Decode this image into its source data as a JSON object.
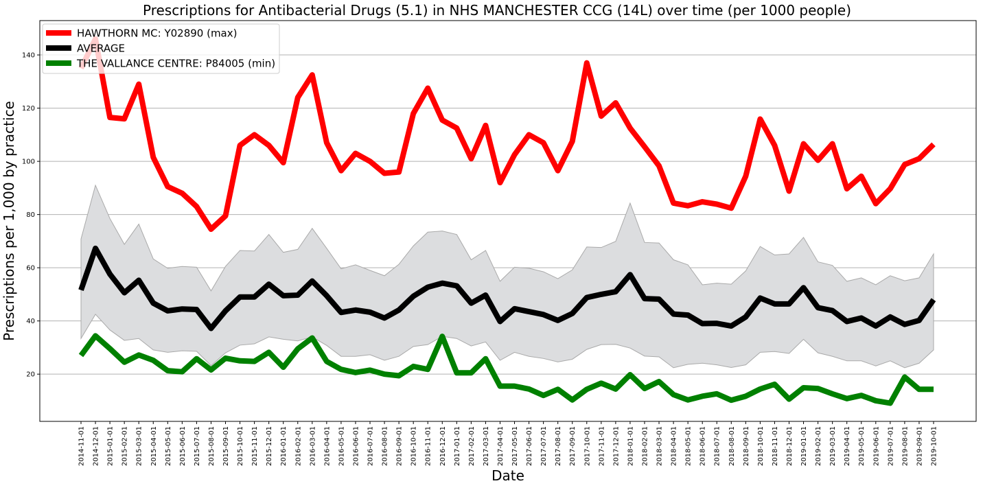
{
  "chart_data": {
    "type": "line",
    "title": "Prescriptions for Antibacterial Drugs (5.1) in NHS MANCHESTER CCG (14L) over time (per 1000 people)",
    "xlabel": "Date",
    "ylabel": "Prescriptions per 1,000 by practice",
    "ylim": [
      1.5,
      154
    ],
    "yticks": [
      20,
      40,
      60,
      80,
      100,
      120,
      140
    ],
    "grid": "y",
    "legend_position": "upper left",
    "x": [
      "2014-11-01",
      "2014-12-01",
      "2015-01-01",
      "2015-02-01",
      "2015-03-01",
      "2015-04-01",
      "2015-05-01",
      "2015-06-01",
      "2015-07-01",
      "2015-08-01",
      "2015-09-01",
      "2015-10-01",
      "2015-11-01",
      "2015-12-01",
      "2016-01-01",
      "2016-02-01",
      "2016-03-01",
      "2016-04-01",
      "2016-05-01",
      "2016-06-01",
      "2016-07-01",
      "2016-08-01",
      "2016-09-01",
      "2016-10-01",
      "2016-11-01",
      "2016-12-01",
      "2017-01-01",
      "2017-02-01",
      "2017-03-01",
      "2017-04-01",
      "2017-05-01",
      "2017-06-01",
      "2017-07-01",
      "2017-08-01",
      "2017-09-01",
      "2017-10-01",
      "2017-11-01",
      "2017-12-01",
      "2018-01-01",
      "2018-02-01",
      "2018-03-01",
      "2018-04-01",
      "2018-05-01",
      "2018-06-01",
      "2018-07-01",
      "2018-08-01",
      "2018-09-01",
      "2018-10-01",
      "2018-11-01",
      "2018-12-01",
      "2019-01-01",
      "2019-02-01",
      "2019-03-01",
      "2019-04-01",
      "2019-05-01",
      "2019-06-01",
      "2019-07-01",
      "2019-08-01",
      "2019-09-01",
      "2019-10-01"
    ],
    "series": [
      {
        "name": "HAWTHORN MC: Y02890 (max)",
        "color": "#ff0000",
        "values": [
          135,
          146,
          116.5,
          116,
          129,
          101.5,
          90.5,
          88,
          83,
          74.5,
          79.5,
          106,
          110,
          106,
          99.5,
          124,
          132.5,
          107,
          96.5,
          103,
          100,
          95.5,
          96,
          118,
          127.5,
          115.5,
          112.5,
          101,
          113.5,
          92,
          102.5,
          110,
          107,
          96.5,
          107.5,
          137,
          117,
          122,
          112.5,
          105.5,
          98.3,
          84.3,
          83.3,
          84.8,
          83.9,
          82.4,
          94.4,
          115.9,
          106,
          88.8,
          106.6,
          100.4,
          106.6,
          89.7,
          94.4,
          84.1,
          89.7,
          98.8,
          101,
          106.4
        ]
      },
      {
        "name": "AVERAGE",
        "color": "#000000",
        "values": [
          51.6,
          67.3,
          57.6,
          50.6,
          55.3,
          46.7,
          43.8,
          44.5,
          44.3,
          37.2,
          43.8,
          49,
          49,
          53.8,
          49.5,
          49.7,
          55,
          49.5,
          43.2,
          44.1,
          43.3,
          41.1,
          44.1,
          49.3,
          52.7,
          54.2,
          53.2,
          46.7,
          49.7,
          39.8,
          44.6,
          43.5,
          42.4,
          40.2,
          42.8,
          48.8,
          50,
          51,
          57.4,
          48.4,
          48.2,
          42.6,
          42.2,
          39,
          39.1,
          38.1,
          41.5,
          48.6,
          46.4,
          46.4,
          52.5,
          45,
          43.9,
          39.8,
          41.1,
          38.1,
          41.5,
          38.7,
          40.2,
          48
        ]
      },
      {
        "name": "THE VALLANCE CENTRE: P84005 (min)",
        "color": "#008000",
        "values": [
          27,
          34.4,
          29.6,
          24.5,
          27.2,
          25.2,
          21.3,
          20.9,
          25.8,
          21.6,
          26,
          25,
          24.8,
          28.2,
          22.6,
          29.5,
          33.6,
          24.8,
          21.8,
          20.6,
          21.5,
          20,
          19.4,
          22.9,
          21.8,
          34.2,
          20.5,
          20.5,
          25.8,
          15.5,
          15.5,
          14.4,
          12,
          14.3,
          10.3,
          14.3,
          16.6,
          14.4,
          19.8,
          14.6,
          17.2,
          12.3,
          10.3,
          11.7,
          12.6,
          10.2,
          11.7,
          14.4,
          16.2,
          10.6,
          14.9,
          14.6,
          12.6,
          10.8,
          12,
          10,
          9.1,
          18.9,
          14.3,
          14.3
        ]
      }
    ],
    "band": {
      "color": "#dcdddf",
      "edge_color": "#a9a9a9",
      "upper": [
        70.8,
        91,
        78.5,
        68.8,
        76.4,
        63.3,
        59.8,
        60.5,
        60.2,
        51.3,
        60.5,
        66.5,
        66.3,
        72.5,
        65.8,
        66.9,
        74.8,
        67.3,
        59.6,
        61.1,
        59,
        57,
        61.3,
        68.2,
        73.4,
        73.8,
        72.5,
        63,
        66.5,
        54.9,
        60.2,
        59.8,
        58.5,
        55.9,
        59.2,
        67.8,
        67.6,
        69.9,
        84.3,
        69.5,
        69.3,
        63,
        61.1,
        53.6,
        54.2,
        53.8,
        58.8,
        68,
        64.8,
        65.2,
        71.4,
        62.2,
        60.9,
        54.9,
        56.2,
        53.6,
        57,
        55.1,
        56.2,
        65.2
      ],
      "lower": [
        33.4,
        42.5,
        36.6,
        32.7,
        33.4,
        29.1,
        28.2,
        28.8,
        28.6,
        23.2,
        28,
        30.9,
        31.4,
        34,
        33.1,
        32.5,
        34,
        30.8,
        26.7,
        26.7,
        27.3,
        25.2,
        26.7,
        30.4,
        31.1,
        34.2,
        33.4,
        30.6,
        32.1,
        25.2,
        28.2,
        26.7,
        25.9,
        24.6,
        25.6,
        29.3,
        31.1,
        31.2,
        29.8,
        26.8,
        26.5,
        22.4,
        23.7,
        24.1,
        23.5,
        22.5,
        23.5,
        28.2,
        28.5,
        27.8,
        33.1,
        28,
        26.7,
        25,
        25,
        23.1,
        25,
        22.4,
        24.1,
        29.1
      ]
    }
  }
}
